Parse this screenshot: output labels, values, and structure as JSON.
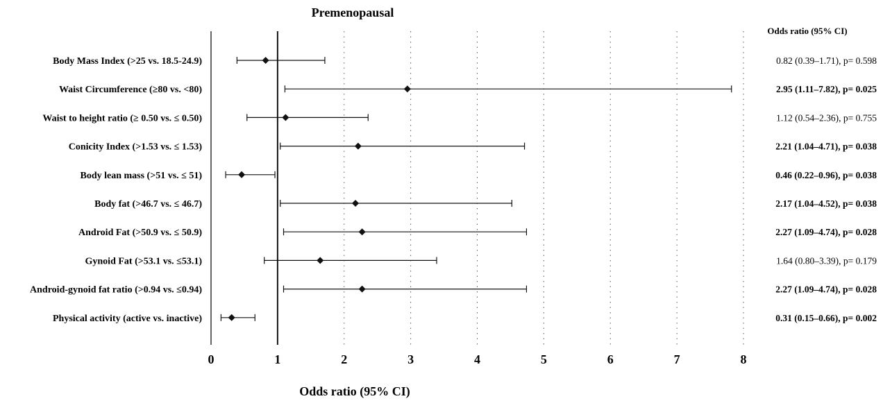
{
  "chart_data": {
    "type": "forest",
    "title": "Premenopausal",
    "xlabel": "Odds ratio (95% CI)",
    "or_header": "Odds ratio (95% CI)",
    "xlim": [
      0,
      8
    ],
    "xticks": [
      0,
      1,
      2,
      3,
      4,
      5,
      6,
      7,
      8
    ],
    "reference_line": 1,
    "grid": "dotted vertical",
    "rows": [
      {
        "label": "Body Mass Index (>25 vs. 18.5-24.9)",
        "or": 0.82,
        "lo": 0.39,
        "hi": 1.71,
        "text": "0.82 (0.39–1.71), p= 0.598",
        "significant": false
      },
      {
        "label": "Waist Circumference (≥80 vs. <80)",
        "or": 2.95,
        "lo": 1.11,
        "hi": 7.82,
        "text": "2.95 (1.11–7.82), p= 0.025",
        "significant": true
      },
      {
        "label": "Waist to height ratio (≥ 0.50 vs. ≤ 0.50)",
        "or": 1.12,
        "lo": 0.54,
        "hi": 2.36,
        "text": "1.12 (0.54–2.36), p= 0.755",
        "significant": false
      },
      {
        "label": "Conicity Index (>1.53 vs. ≤ 1.53)",
        "or": 2.21,
        "lo": 1.04,
        "hi": 4.71,
        "text": "2.21 (1.04–4.71), p= 0.038",
        "significant": true
      },
      {
        "label": "Body lean mass (>51 vs. ≤ 51)",
        "or": 0.46,
        "lo": 0.22,
        "hi": 0.96,
        "text": "0.46 (0.22–0.96), p= 0.038",
        "significant": true
      },
      {
        "label": "Body fat (>46.7 vs. ≤ 46.7)",
        "or": 2.17,
        "lo": 1.04,
        "hi": 4.52,
        "text": "2.17 (1.04–4.52), p= 0.038",
        "significant": true
      },
      {
        "label": "Android Fat (>50.9 vs. ≤ 50.9)",
        "or": 2.27,
        "lo": 1.09,
        "hi": 4.74,
        "text": "2.27 (1.09–4.74), p= 0.028",
        "significant": true
      },
      {
        "label": "Gynoid Fat (>53.1 vs. ≤53.1)",
        "or": 1.64,
        "lo": 0.8,
        "hi": 3.39,
        "text": "1.64 (0.80–3.39), p= 0.179",
        "significant": false
      },
      {
        "label": "Android-gynoid fat ratio (>0.94 vs. ≤0.94)",
        "or": 2.27,
        "lo": 1.09,
        "hi": 4.74,
        "text": "2.27 (1.09–4.74), p= 0.028",
        "significant": true
      },
      {
        "label": "Physical activity (active vs. inactive)",
        "or": 0.31,
        "lo": 0.15,
        "hi": 0.66,
        "text": "0.31 (0.15–0.66), p= 0.002",
        "significant": true
      }
    ]
  }
}
